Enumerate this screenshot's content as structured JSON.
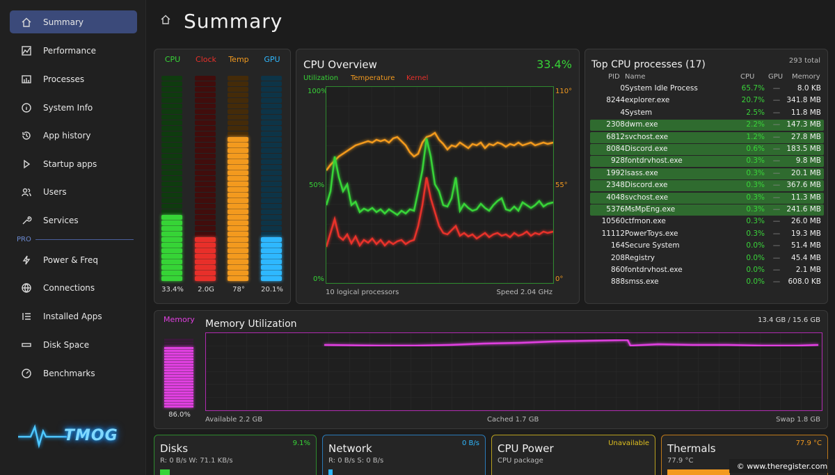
{
  "sidebar": {
    "items": [
      {
        "label": "Summary",
        "icon": "home-icon"
      },
      {
        "label": "Performance",
        "icon": "chart-icon"
      },
      {
        "label": "Processes",
        "icon": "processes-icon"
      },
      {
        "label": "System Info",
        "icon": "info-icon"
      },
      {
        "label": "App history",
        "icon": "history-icon"
      },
      {
        "label": "Startup apps",
        "icon": "play-icon"
      },
      {
        "label": "Users",
        "icon": "users-icon"
      },
      {
        "label": "Services",
        "icon": "wrench-icon"
      }
    ],
    "pro_label": "PRO",
    "pro_items": [
      {
        "label": "Power & Freq",
        "icon": "bolt-icon"
      },
      {
        "label": "Connections",
        "icon": "globe-icon"
      },
      {
        "label": "Installed Apps",
        "icon": "list-icon"
      },
      {
        "label": "Disk Space",
        "icon": "disk-icon"
      },
      {
        "label": "Benchmarks",
        "icon": "gauge-icon"
      }
    ],
    "logo_text": "TMOG"
  },
  "header": {
    "title": "Summary"
  },
  "meters": [
    {
      "label": "CPU",
      "value": "33.4%",
      "level": 0.334,
      "color": "#37d437"
    },
    {
      "label": "Clock",
      "value": "2.0G",
      "level": 0.21,
      "color": "#e8302a"
    },
    {
      "label": "Temp",
      "value": "78°",
      "level": 0.71,
      "color": "#f39a1f"
    },
    {
      "label": "GPU",
      "value": "20.1%",
      "level": 0.21,
      "color": "#2fb8ff"
    }
  ],
  "cpu_overview": {
    "title": "CPU Overview",
    "percent": "33.4%",
    "legend": [
      {
        "label": "Utilization",
        "color": "#37d437"
      },
      {
        "label": "Temperature",
        "color": "#f39a1f"
      },
      {
        "label": "Kernel",
        "color": "#e8302a"
      }
    ],
    "left_axis": [
      "100%",
      "50%",
      "0%"
    ],
    "right_axis": [
      "110°",
      "55°",
      "0°"
    ],
    "footer_left": "10 logical processors",
    "footer_right": "Speed 2.04 GHz"
  },
  "processes": {
    "title": "Top CPU processes (17)",
    "total": "293 total",
    "columns": [
      "PID",
      "Name",
      "CPU",
      "GPU",
      "Memory"
    ],
    "rows": [
      {
        "pid": "0",
        "name": "System Idle Process",
        "cpu": "65.7%",
        "gpu": "—",
        "mem": "8.0 KB",
        "hl": false
      },
      {
        "pid": "8244",
        "name": "explorer.exe",
        "cpu": "20.7%",
        "gpu": "—",
        "mem": "341.8 MB",
        "hl": false
      },
      {
        "pid": "4",
        "name": "System",
        "cpu": "2.5%",
        "gpu": "—",
        "mem": "11.8 MB",
        "hl": false
      },
      {
        "pid": "2308",
        "name": "dwm.exe",
        "cpu": "2.2%",
        "gpu": "—",
        "mem": "147.3 MB",
        "hl": true
      },
      {
        "pid": "6812",
        "name": "svchost.exe",
        "cpu": "1.2%",
        "gpu": "—",
        "mem": "27.8 MB",
        "hl": true
      },
      {
        "pid": "8084",
        "name": "Discord.exe",
        "cpu": "0.6%",
        "gpu": "—",
        "mem": "183.5 MB",
        "hl": true
      },
      {
        "pid": "928",
        "name": "fontdrvhost.exe",
        "cpu": "0.3%",
        "gpu": "—",
        "mem": "9.8 MB",
        "hl": true
      },
      {
        "pid": "1992",
        "name": "lsass.exe",
        "cpu": "0.3%",
        "gpu": "—",
        "mem": "20.1 MB",
        "hl": true
      },
      {
        "pid": "2348",
        "name": "Discord.exe",
        "cpu": "0.3%",
        "gpu": "—",
        "mem": "367.6 MB",
        "hl": true
      },
      {
        "pid": "4048",
        "name": "svchost.exe",
        "cpu": "0.3%",
        "gpu": "—",
        "mem": "11.3 MB",
        "hl": true
      },
      {
        "pid": "5376",
        "name": "MsMpEng.exe",
        "cpu": "0.3%",
        "gpu": "—",
        "mem": "241.6 MB",
        "hl": true
      },
      {
        "pid": "10560",
        "name": "ctfmon.exe",
        "cpu": "0.3%",
        "gpu": "—",
        "mem": "26.0 MB",
        "hl": false
      },
      {
        "pid": "11112",
        "name": "PowerToys.exe",
        "cpu": "0.3%",
        "gpu": "—",
        "mem": "19.3 MB",
        "hl": false
      },
      {
        "pid": "164",
        "name": "Secure System",
        "cpu": "0.0%",
        "gpu": "—",
        "mem": "51.4 MB",
        "hl": false
      },
      {
        "pid": "208",
        "name": "Registry",
        "cpu": "0.0%",
        "gpu": "—",
        "mem": "45.4 MB",
        "hl": false
      },
      {
        "pid": "860",
        "name": "fontdrvhost.exe",
        "cpu": "0.0%",
        "gpu": "—",
        "mem": "2.1 MB",
        "hl": false
      },
      {
        "pid": "888",
        "name": "smss.exe",
        "cpu": "0.0%",
        "gpu": "—",
        "mem": "608.0 KB",
        "hl": false
      }
    ]
  },
  "memory": {
    "label": "Memory",
    "title": "Memory Utilization",
    "usage": "13.4 GB / 15.6 GB",
    "percent": "86.0%",
    "level": 0.86,
    "available": "Available 2.2 GB",
    "cached": "Cached 1.7 GB",
    "swap": "Swap 1.8 GB"
  },
  "bottom": [
    {
      "title": "Disks",
      "value": "9.1%",
      "sub": "R: 0 B/s  W: 71.1 KB/s",
      "color": "#37d437"
    },
    {
      "title": "Network",
      "value": "0 B/s",
      "sub": "R: 0 B/s  S: 0 B/s",
      "color": "#2fb8ff"
    },
    {
      "title": "CPU Power",
      "value": "Unavailable",
      "sub": "CPU package",
      "color": "#e0c020"
    },
    {
      "title": "Thermals",
      "value": "77.9 °C",
      "sub": "77.9 °C",
      "color": "#f39a1f"
    }
  ],
  "watermark": "© www.theregister.com"
}
